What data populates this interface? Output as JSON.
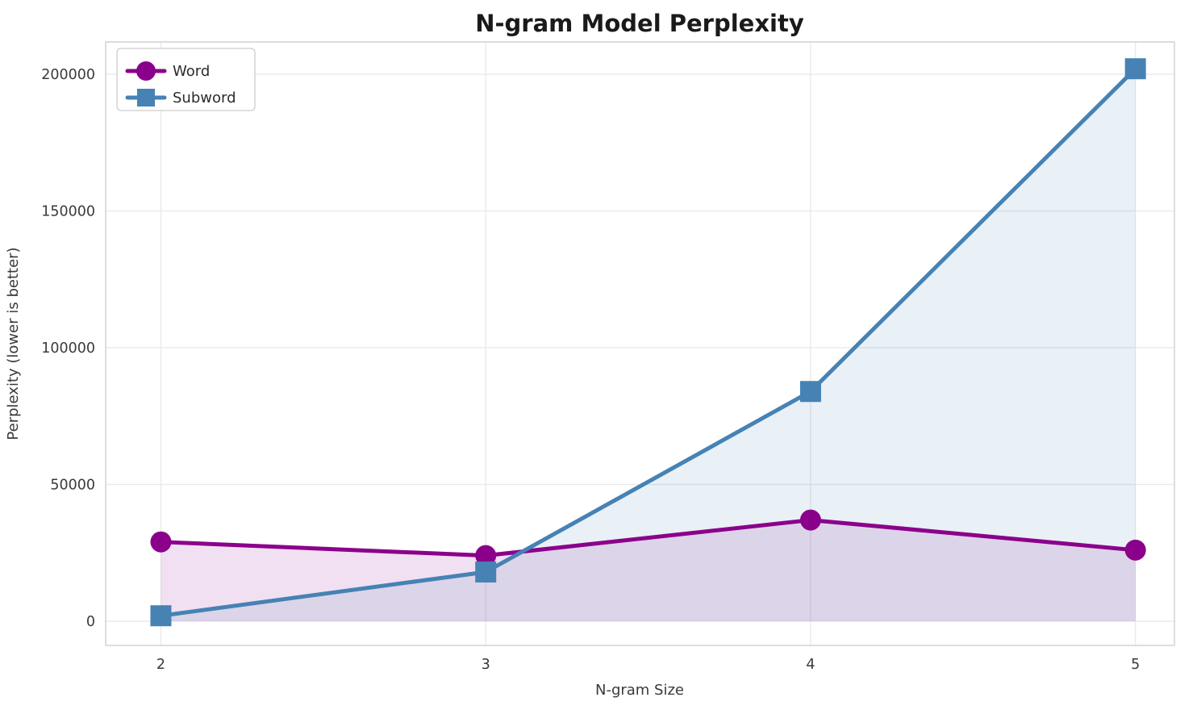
{
  "chart_data": {
    "type": "line",
    "title": "N-gram Model Perplexity",
    "xlabel": "N-gram Size",
    "ylabel": "Perplexity (lower is better)",
    "x": [
      2,
      3,
      4,
      5
    ],
    "xtick_labels": [
      "2",
      "3",
      "4",
      "5"
    ],
    "ytick_values": [
      0,
      50000,
      100000,
      150000,
      200000
    ],
    "ytick_labels": [
      "0",
      "50000",
      "100000",
      "150000",
      "200000"
    ],
    "x_range": [
      1.83,
      5.12
    ],
    "y_range": [
      -8850,
      211800
    ],
    "grid": true,
    "legend_position": "upper left",
    "fill_to_zero": true,
    "background_color": "#ffffff",
    "grid_color": "#e8e8e8",
    "frame_color": "#d2d2d2",
    "text_color": "#3a3a3a",
    "title_color": "#1a1a1a",
    "series": [
      {
        "name": "Word",
        "marker": "circle",
        "color": "#8B008B",
        "fill_opacity": 0.12,
        "values": [
          29000,
          24000,
          37000,
          26000
        ]
      },
      {
        "name": "Subword",
        "marker": "square",
        "color": "#4682B4",
        "fill_opacity": 0.12,
        "values": [
          2000,
          18000,
          84000,
          202000
        ]
      }
    ]
  }
}
